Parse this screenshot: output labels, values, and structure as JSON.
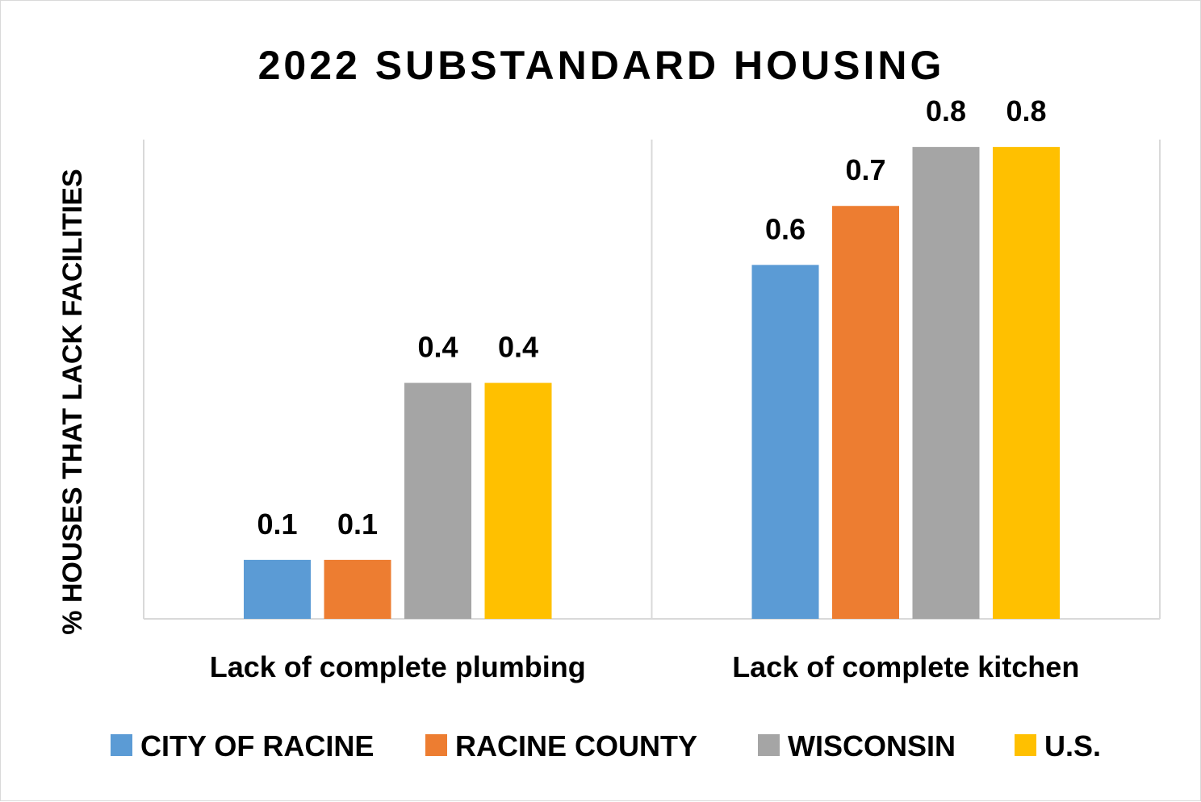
{
  "chart_data": {
    "type": "bar",
    "title": "2022 SUBSTANDARD HOUSING",
    "ylabel": "% HOUSES THAT LACK FACILITIES",
    "xlabel": "",
    "categories": [
      "Lack of complete plumbing",
      "Lack of complete kitchen"
    ],
    "series": [
      {
        "name": "CITY OF RACINE",
        "color": "#5B9BD5",
        "values": [
          0.1,
          0.6
        ],
        "labels": [
          "0.1",
          "0.6"
        ]
      },
      {
        "name": "RACINE COUNTY",
        "color": "#ED7D31",
        "values": [
          0.1,
          0.7
        ],
        "labels": [
          "0.1",
          "0.7"
        ]
      },
      {
        "name": "WISCONSIN",
        "color": "#A5A5A5",
        "values": [
          0.4,
          0.8
        ],
        "labels": [
          "0.4",
          "0.8"
        ]
      },
      {
        "name": "U.S.",
        "color": "#FFC000",
        "values": [
          0.4,
          0.8
        ],
        "labels": [
          "0.4",
          "0.8"
        ]
      }
    ],
    "ylim": [
      0,
      0.9
    ],
    "grid": false,
    "legend": "bottom"
  }
}
